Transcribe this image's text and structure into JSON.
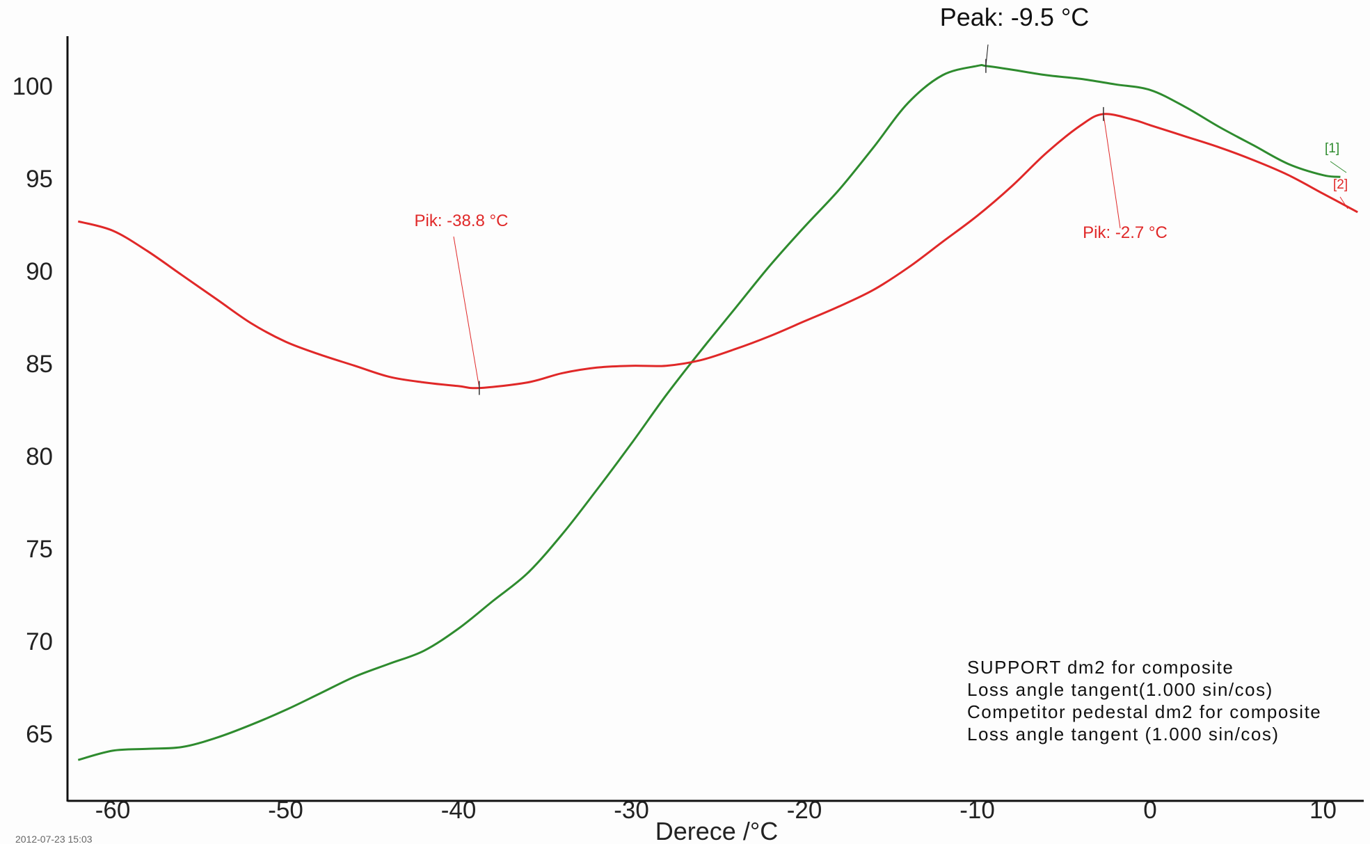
{
  "chart_data": {
    "type": "line",
    "xlabel": "Derece /°C",
    "ylabel": "",
    "xlim": [
      -62,
      12
    ],
    "ylim": [
      61.5,
      102.5
    ],
    "x_ticks": [
      -60,
      -50,
      -40,
      -30,
      -20,
      -10,
      0,
      10
    ],
    "y_ticks": [
      65,
      70,
      75,
      80,
      85,
      90,
      95,
      100
    ],
    "grid": false,
    "colors": {
      "series1": "#2e8b2e",
      "series2": "#e02828",
      "axis": "#111111"
    },
    "series": [
      {
        "tag": "[1]",
        "color": "#2e8b2e",
        "points": [
          [
            -62,
            63.6
          ],
          [
            -60,
            64.1
          ],
          [
            -58,
            64.2
          ],
          [
            -56,
            64.3
          ],
          [
            -54,
            64.8
          ],
          [
            -52,
            65.5
          ],
          [
            -50,
            66.3
          ],
          [
            -48,
            67.2
          ],
          [
            -46,
            68.1
          ],
          [
            -44,
            68.8
          ],
          [
            -42,
            69.5
          ],
          [
            -40,
            70.7
          ],
          [
            -38,
            72.2
          ],
          [
            -36,
            73.7
          ],
          [
            -34,
            75.8
          ],
          [
            -32,
            78.2
          ],
          [
            -30,
            80.7
          ],
          [
            -28,
            83.3
          ],
          [
            -26,
            85.7
          ],
          [
            -24,
            88.0
          ],
          [
            -22,
            90.3
          ],
          [
            -20,
            92.4
          ],
          [
            -18,
            94.4
          ],
          [
            -16,
            96.7
          ],
          [
            -14,
            99.1
          ],
          [
            -12,
            100.6
          ],
          [
            -10,
            101.1
          ],
          [
            -9.5,
            101.1
          ],
          [
            -8,
            100.9
          ],
          [
            -6,
            100.6
          ],
          [
            -4,
            100.4
          ],
          [
            -2,
            100.1
          ],
          [
            0,
            99.8
          ],
          [
            2,
            98.9
          ],
          [
            4,
            97.8
          ],
          [
            6,
            96.8
          ],
          [
            8,
            95.8
          ],
          [
            10,
            95.2
          ],
          [
            11,
            95.1
          ]
        ]
      },
      {
        "tag": "[2]",
        "color": "#e02828",
        "points": [
          [
            -62,
            92.7
          ],
          [
            -60,
            92.2
          ],
          [
            -58,
            91.1
          ],
          [
            -56,
            89.8
          ],
          [
            -54,
            88.5
          ],
          [
            -52,
            87.2
          ],
          [
            -50,
            86.2
          ],
          [
            -48,
            85.5
          ],
          [
            -46,
            84.9
          ],
          [
            -44,
            84.3
          ],
          [
            -42,
            84.0
          ],
          [
            -40,
            83.8
          ],
          [
            -38.8,
            83.7
          ],
          [
            -36,
            84.0
          ],
          [
            -34,
            84.5
          ],
          [
            -32,
            84.8
          ],
          [
            -30,
            84.9
          ],
          [
            -28,
            84.9
          ],
          [
            -26,
            85.2
          ],
          [
            -24,
            85.8
          ],
          [
            -22,
            86.5
          ],
          [
            -20,
            87.3
          ],
          [
            -18,
            88.1
          ],
          [
            -16,
            89.0
          ],
          [
            -14,
            90.2
          ],
          [
            -12,
            91.6
          ],
          [
            -10,
            93.0
          ],
          [
            -8,
            94.6
          ],
          [
            -6,
            96.4
          ],
          [
            -4,
            97.9
          ],
          [
            -2.7,
            98.5
          ],
          [
            -1,
            98.2
          ],
          [
            0,
            97.9
          ],
          [
            2,
            97.3
          ],
          [
            4,
            96.7
          ],
          [
            6,
            96.0
          ],
          [
            8,
            95.2
          ],
          [
            10,
            94.2
          ],
          [
            12,
            93.2
          ]
        ]
      }
    ],
    "annotations": [
      {
        "text": "Peak: -9.5 °C",
        "x": -9.5,
        "y": 101.1,
        "color": "#111111"
      },
      {
        "text": "Pik: -38.8 °C",
        "x": -38.8,
        "y": 83.7,
        "color": "#e02828"
      },
      {
        "text": "Pik: -2.7 °C",
        "x": -2.7,
        "y": 98.5,
        "color": "#e02828"
      }
    ],
    "legend_text": [
      "SUPPORT dm2 for composite",
      "Loss angle tangent(1.000 sin/cos)",
      "Competitor pedestal dm2 for composite",
      "Loss angle tangent (1.000 sin/cos)"
    ],
    "legend_position": "bottom-right",
    "timestamp": "2012-07-23 15:03"
  }
}
